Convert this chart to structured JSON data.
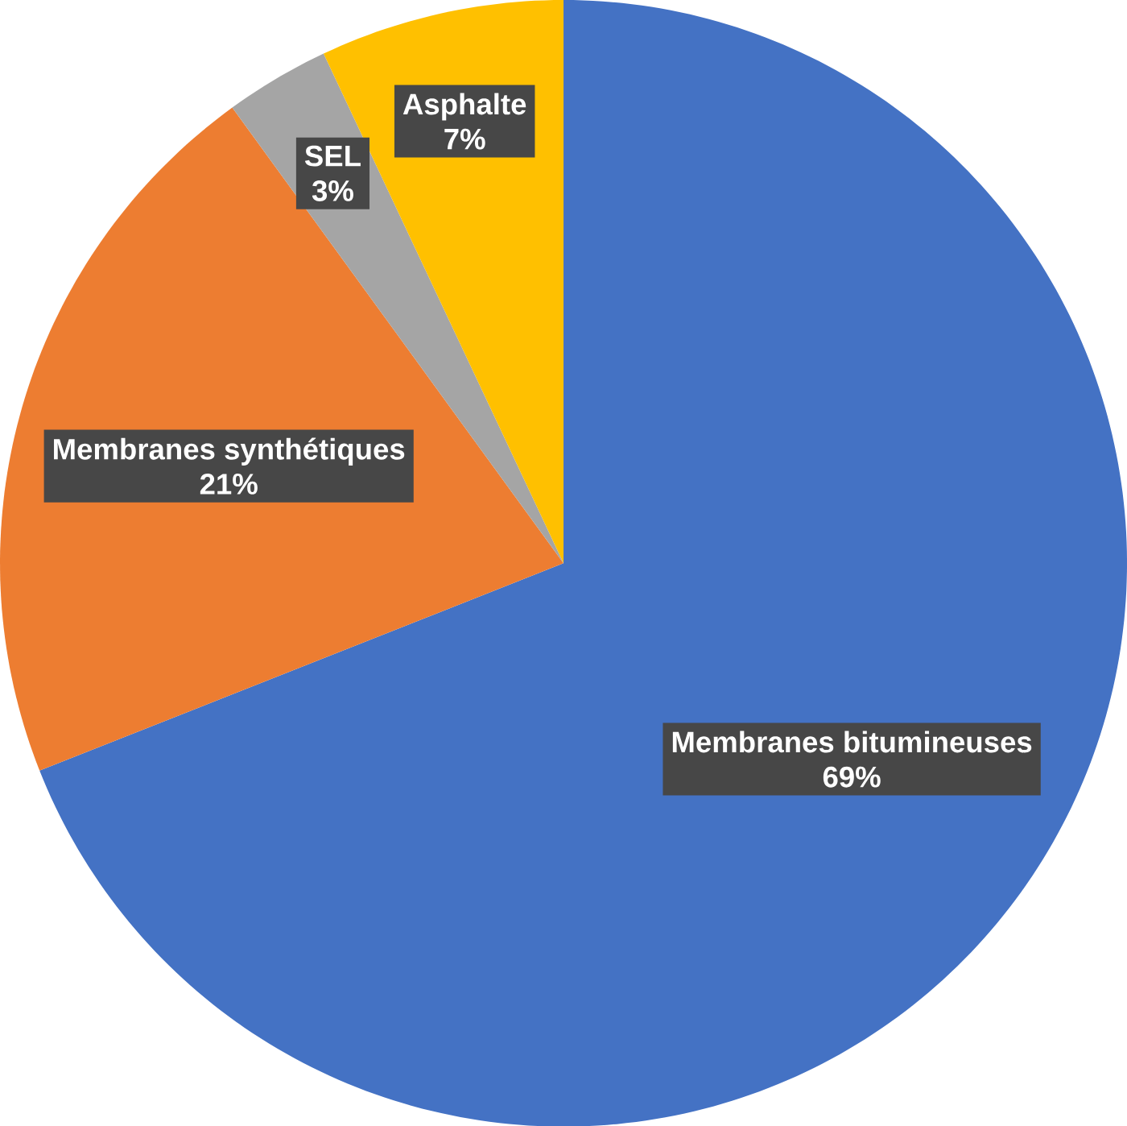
{
  "chart_data": {
    "type": "pie",
    "categories": [
      "Membranes bitumineuses",
      "Membranes synthétiques",
      "SEL",
      "Asphalte"
    ],
    "values": [
      69,
      21,
      3,
      7
    ],
    "value_labels": [
      "69%",
      "21%",
      "3%",
      "7%"
    ],
    "colors": [
      "#4472c4",
      "#ed7d31",
      "#a5a5a5",
      "#ffc000"
    ]
  }
}
